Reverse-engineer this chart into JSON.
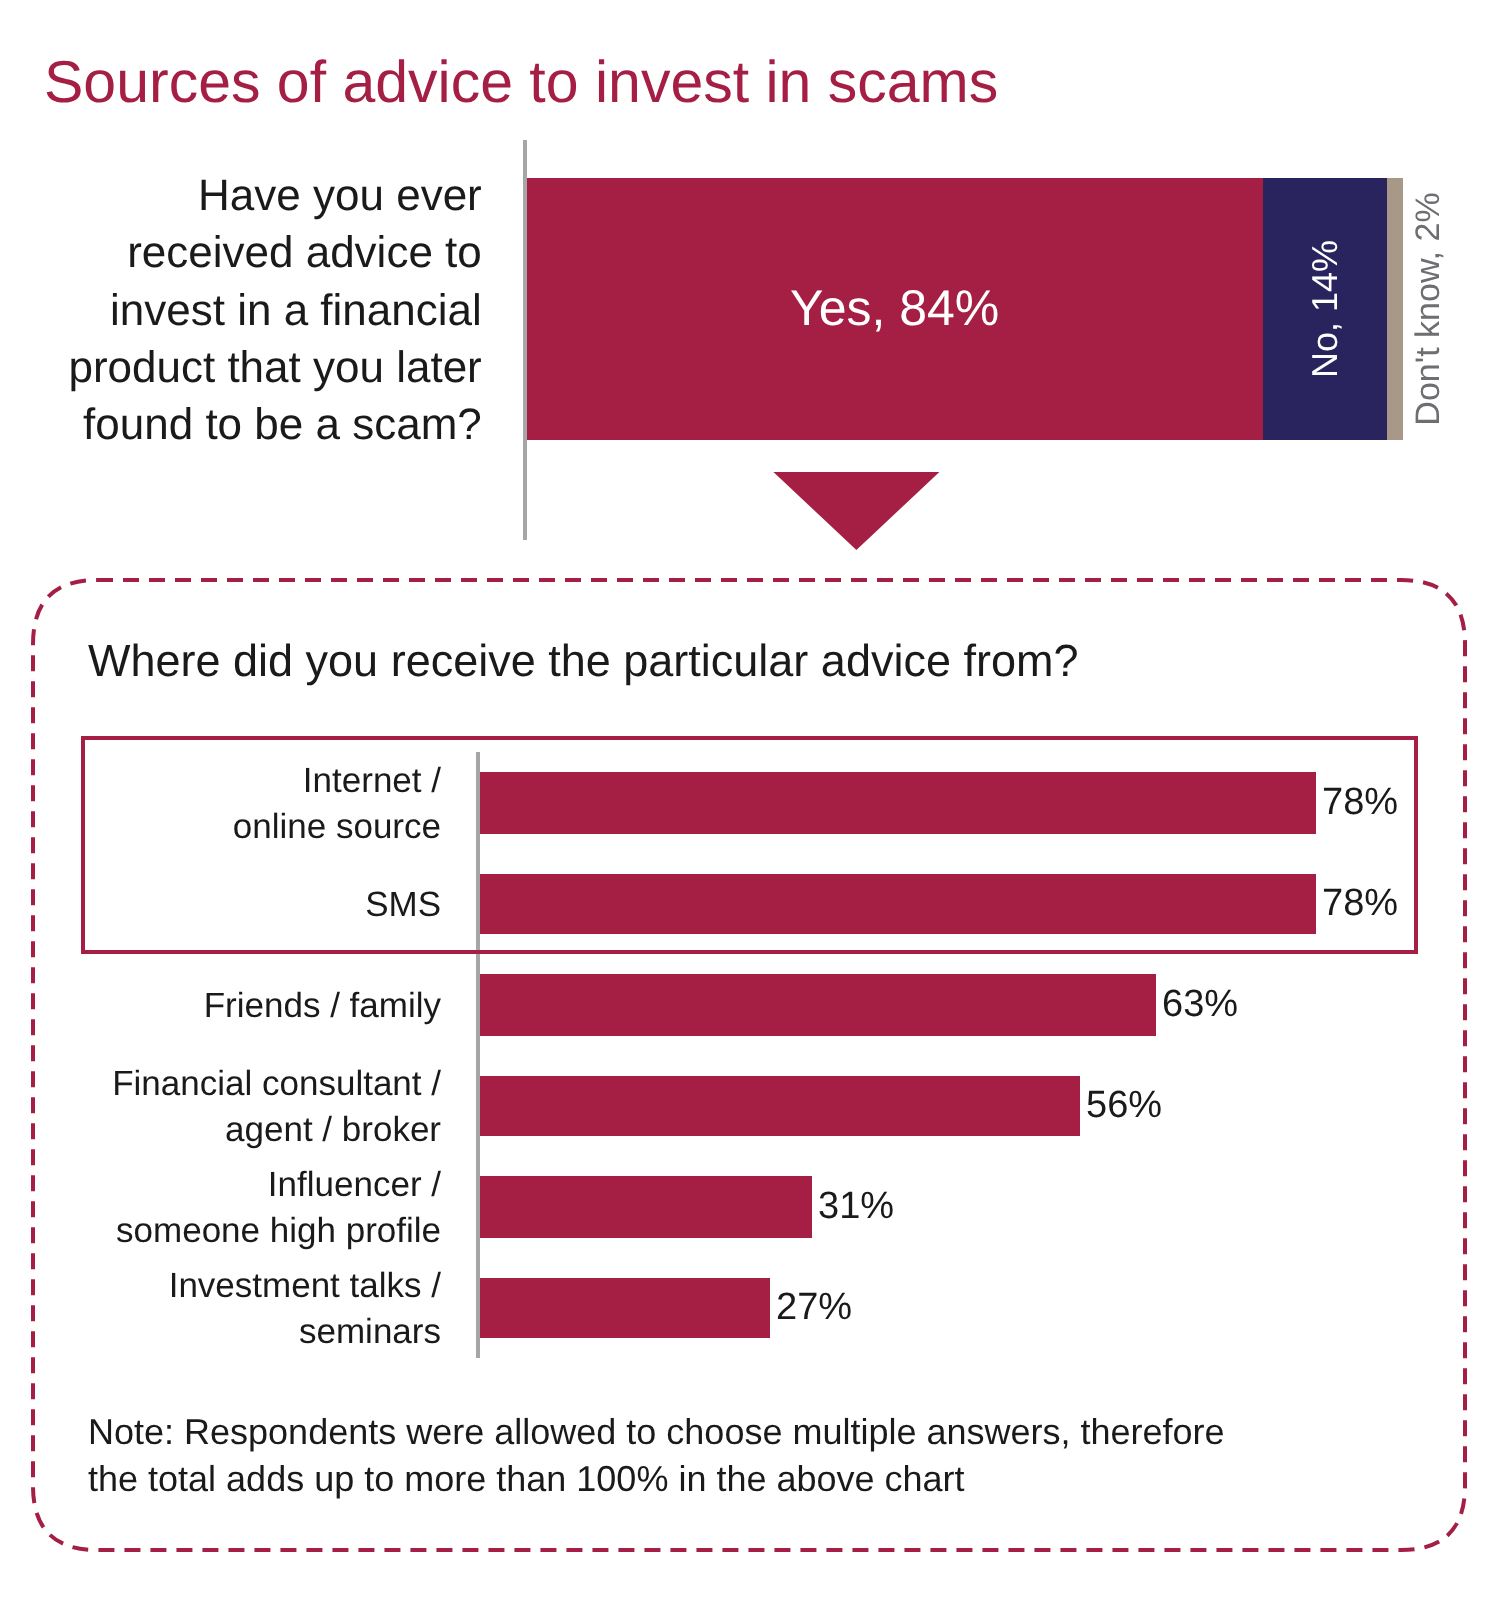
{
  "chart_data": [
    {
      "type": "bar",
      "title": "Sources of advice to invest in scams",
      "orientation": "horizontal",
      "stacked": true,
      "categories": [
        "Have you ever\nreceived advice to\ninvest in a financial\nproduct that you later\nfound to be a scam?"
      ],
      "series": [
        {
          "color": "#a51f45",
          "values": [
            84
          ],
          "value_labels": [
            "Yes, 84%"
          ]
        },
        {
          "color": "#29245e",
          "values": [
            14
          ],
          "value_labels": [
            "No, 14%"
          ]
        },
        {
          "color": "#a89888",
          "values": [
            2
          ],
          "value_labels": [
            "Don't know, 2%"
          ]
        }
      ],
      "xlim": [
        0,
        100
      ],
      "tick_labels": "y"
    },
    {
      "type": "bar",
      "title": "Where did you receive the particular advice from?",
      "orientation": "horizontal",
      "categories": [
        "Internet /\nonline source",
        "SMS",
        "Friends / family",
        "Financial consultant /\nagent / broker",
        "Influencer /\nsomeone high profile",
        "Investment talks /\nseminars"
      ],
      "values": [
        78,
        78,
        63,
        56,
        31,
        27
      ],
      "value_labels": [
        "78%",
        "78%",
        "63%",
        "56%",
        "31%",
        "27%"
      ],
      "color": "#a51f45",
      "tick_labels": "y",
      "annotations": [
        "Note: Respondents were allowed to choose multiple answers, therefore\nthe total adds up to more than 100% in the above chart"
      ]
    }
  ]
}
